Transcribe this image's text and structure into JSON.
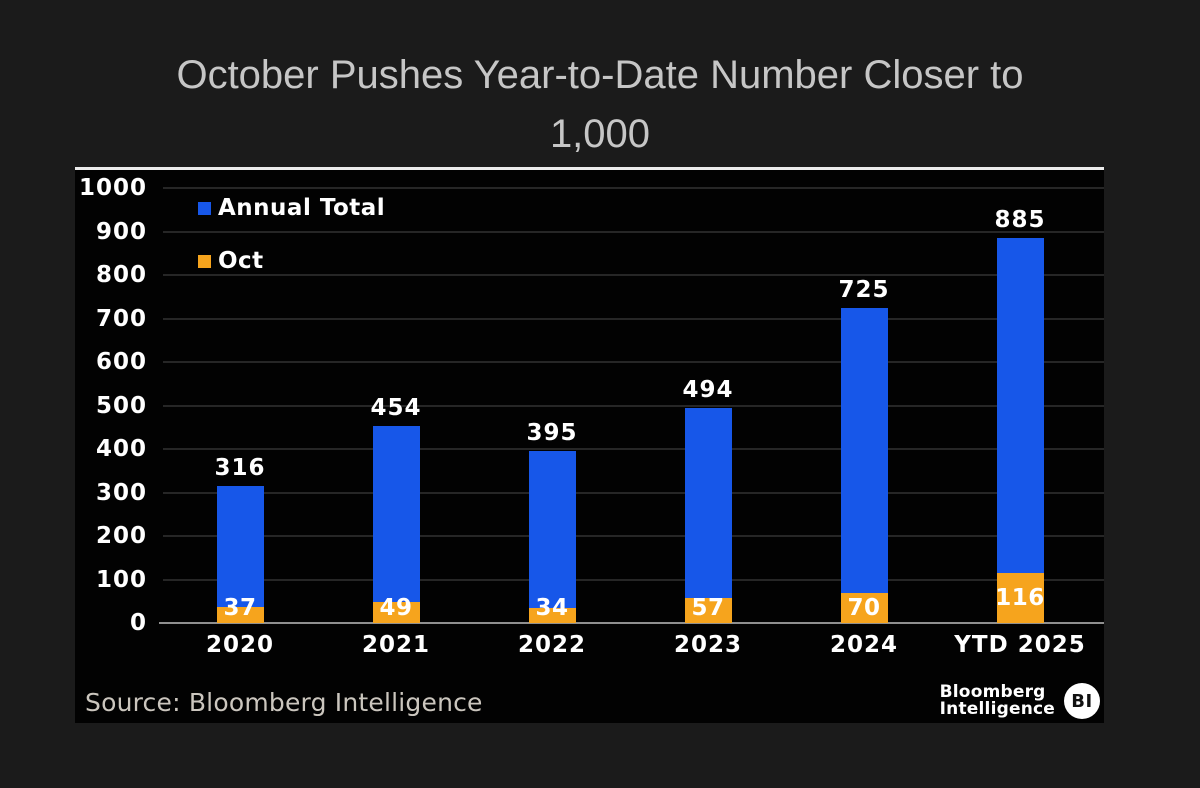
{
  "title": {
    "line1": "October Pushes Year-to-Date Number Closer to",
    "line2": "1,000"
  },
  "legend": [
    {
      "label": "Annual Total",
      "color": "#1757e9"
    },
    {
      "label": "Oct",
      "color": "#f6a41d"
    }
  ],
  "source": "Source: Bloomberg Intelligence",
  "logo": {
    "line1": "Bloomberg",
    "line2": "Intelligence",
    "badge": "BI"
  },
  "colors": {
    "background": "#1b1b1b",
    "panel": "#020202",
    "panel_top_border": "#ececec",
    "gridline": "#262626",
    "axis_line": "#8f8f8f",
    "annual_total": "#1757e9",
    "oct": "#f6a41d",
    "label_text": "#ffffff",
    "title_text": "#c6c6c6",
    "source_text": "#cbc6be"
  },
  "chart_data": {
    "type": "bar",
    "variant": "overlay-stacked",
    "title": "October Pushes Year-to-Date Number Closer to 1,000",
    "categories": [
      "2020",
      "2021",
      "2022",
      "2023",
      "2024",
      "YTD 2025"
    ],
    "series": [
      {
        "name": "Annual Total",
        "color": "#1757e9",
        "values": [
          316,
          454,
          395,
          494,
          725,
          885
        ]
      },
      {
        "name": "Oct",
        "color": "#f6a41d",
        "values": [
          37,
          49,
          34,
          57,
          70,
          116
        ]
      }
    ],
    "xlabel": "",
    "ylabel": "",
    "ylim": [
      0,
      1000
    ],
    "ytick_step": 100,
    "grid": "horizontal",
    "legend_position": "top-left",
    "source": "Source: Bloomberg Intelligence"
  }
}
